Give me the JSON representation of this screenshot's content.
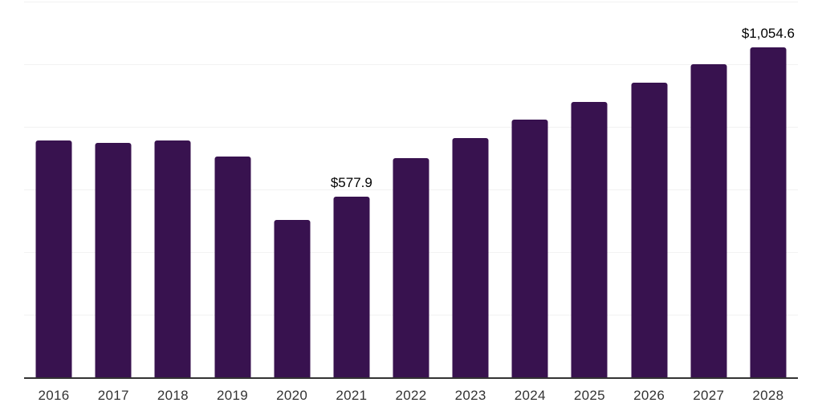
{
  "chart_data": {
    "type": "bar",
    "title": "",
    "xlabel": "",
    "ylabel": "",
    "categories": [
      "2016",
      "2017",
      "2018",
      "2019",
      "2020",
      "2021",
      "2022",
      "2023",
      "2024",
      "2025",
      "2026",
      "2027",
      "2028"
    ],
    "values": [
      757,
      748,
      756,
      706,
      503,
      577.9,
      701,
      763,
      822,
      880,
      940,
      1000,
      1054.6
    ],
    "data_labels": [
      null,
      null,
      null,
      null,
      null,
      "$577.9",
      null,
      null,
      null,
      null,
      null,
      null,
      "$1,054.6"
    ],
    "ylim": [
      0,
      1200
    ],
    "gridline_step": 200,
    "grid": "horizontal",
    "y_tick_labels_visible": false,
    "legend_position": "none",
    "colors": {
      "bar": "#38124f",
      "gridline": "#f2f2f2",
      "axis_line": "#333333",
      "category_label": "#333333",
      "data_label": "#000000",
      "background": "#ffffff"
    }
  }
}
